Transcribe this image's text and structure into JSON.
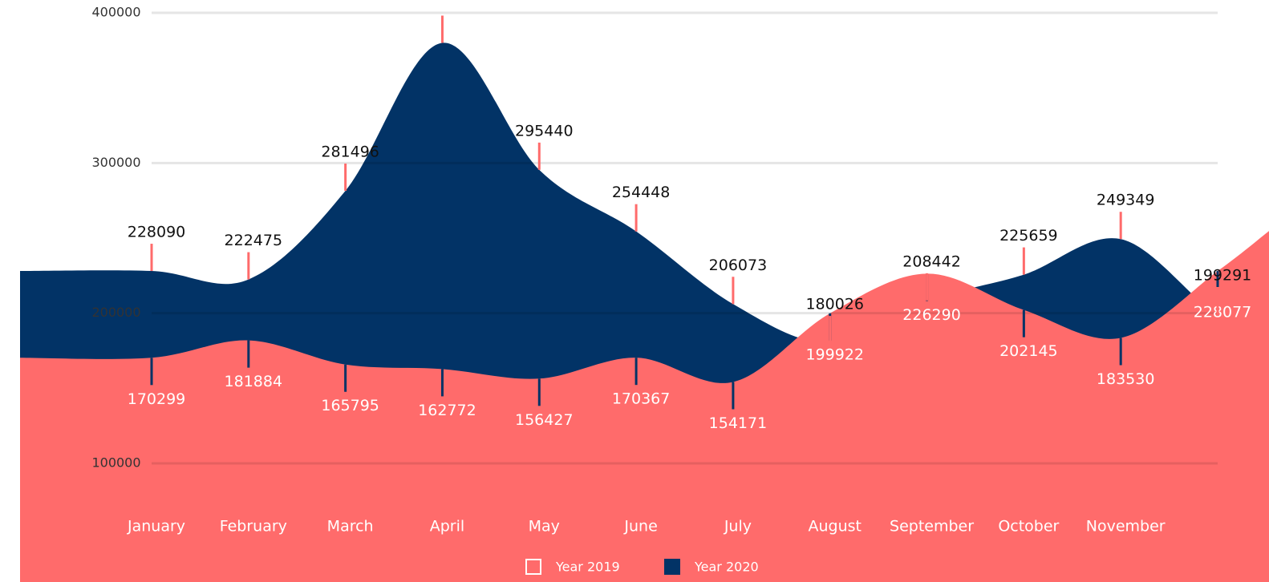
{
  "chart_data": {
    "type": "area",
    "categories": [
      "January",
      "February",
      "March",
      "April",
      "May",
      "June",
      "July",
      "August",
      "September",
      "October",
      "November",
      null
    ],
    "series": [
      {
        "name": "Year 2019",
        "color": "#ff6b6b",
        "legend_color": "#ffffff",
        "values": [
          170299,
          181884,
          165795,
          162772,
          156427,
          170367,
          154171,
          199922,
          226290,
          202145,
          183530,
          228077
        ],
        "value_labels": [
          "170299",
          "181884",
          "165795",
          "162772",
          "156427",
          "170367",
          "154171",
          "199922",
          "226290",
          "202145",
          "183530",
          "228077"
        ]
      },
      {
        "name": "Year 2020",
        "color": "#023366",
        "legend_color": "#023366",
        "values": [
          228090,
          222475,
          281496,
          380000,
          295440,
          254448,
          206073,
          180026,
          208442,
          225659,
          249349,
          199291
        ],
        "value_labels": [
          "228090",
          "222475",
          "281496",
          null,
          "295440",
          "254448",
          "206073",
          "180026",
          "208442",
          "225659",
          "249349",
          "199291"
        ]
      }
    ],
    "ylim": [
      100000,
      400000
    ],
    "yticks": [
      100000,
      200000,
      300000,
      400000
    ],
    "grid": true
  }
}
